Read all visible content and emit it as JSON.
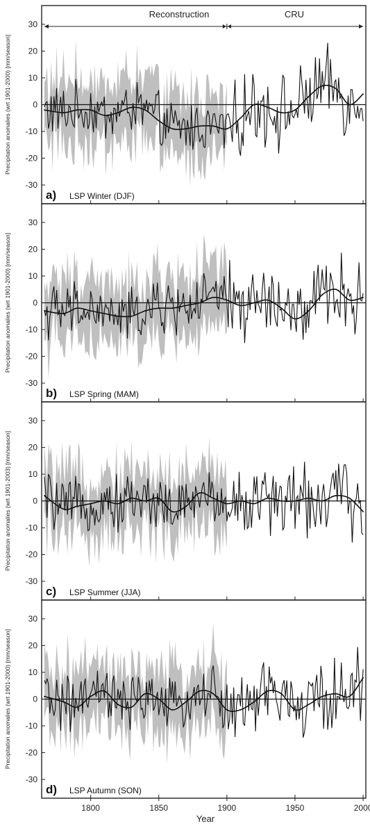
{
  "header": {
    "left_label": "Reconstruction",
    "right_label": "CRU"
  },
  "x_axis": {
    "label": "Year",
    "ticks": [
      "1800",
      "1850",
      "1900",
      "1950",
      "2000"
    ]
  },
  "y_ticks": [
    "30",
    "20",
    "10",
    "0",
    "-10",
    "-20",
    "-30"
  ],
  "colors": {
    "band": "#b4b4b4",
    "line": "#111111",
    "frame": "#222222"
  },
  "chart_data": [
    {
      "type": "line",
      "panel_tag": "a)",
      "panel_title": "LSP Winter (DJF)",
      "ylabel": "Precipitation anomalies (wrt 1901-2000) [mm/season]",
      "xlim": [
        1764,
        2002
      ],
      "ylim": [
        -37,
        37
      ],
      "reconstruction_end": 1900,
      "series": [
        {
          "name": "",
          "x": [
            1766,
            1780,
            1790,
            1800,
            1810,
            1820,
            1830,
            1840,
            1850,
            1860,
            1870,
            1880,
            1890,
            1900,
            1910,
            1920,
            1930,
            1940,
            1950,
            1960,
            1970,
            1980,
            1990,
            2000
          ],
          "values": [
            -2,
            -3,
            -2,
            -2,
            -4,
            -3,
            -1,
            -2,
            -6,
            -9,
            -9,
            -8,
            -8,
            -9,
            -5,
            0,
            -1,
            -3,
            -2,
            3,
            7,
            6,
            0,
            4
          ]
        }
      ]
    },
    {
      "type": "line",
      "panel_tag": "b)",
      "panel_title": "LSP Spring (MAM)",
      "ylabel": "Precipitation anomalies (wrt 1901-2000) [mm/season]",
      "xlim": [
        1764,
        2002
      ],
      "ylim": [
        -37,
        37
      ],
      "reconstruction_end": 1900,
      "series": [
        {
          "name": "",
          "x": [
            1766,
            1780,
            1790,
            1800,
            1810,
            1820,
            1830,
            1840,
            1850,
            1860,
            1870,
            1880,
            1890,
            1900,
            1910,
            1920,
            1930,
            1940,
            1950,
            1960,
            1970,
            1980,
            1990,
            2000
          ],
          "values": [
            -3,
            -4,
            -2,
            -3,
            -4,
            -5,
            -5,
            -3,
            -2,
            -2,
            -1,
            0,
            2,
            1,
            -1,
            0,
            1,
            -2,
            -6,
            -3,
            3,
            5,
            1,
            2
          ]
        }
      ]
    },
    {
      "type": "line",
      "panel_tag": "c)",
      "panel_title": "LSP Summer (JJA)",
      "ylabel": "Precipitation anomalies (wrt 1901-2003) [mm/season]",
      "xlim": [
        1764,
        2002
      ],
      "ylim": [
        -37,
        37
      ],
      "reconstruction_end": 1900,
      "series": [
        {
          "name": "",
          "x": [
            1766,
            1780,
            1790,
            1800,
            1810,
            1820,
            1830,
            1840,
            1850,
            1860,
            1870,
            1880,
            1890,
            1900,
            1910,
            1920,
            1930,
            1940,
            1950,
            1960,
            1970,
            1980,
            1990,
            2000
          ],
          "values": [
            2,
            -3,
            -2,
            -1,
            0,
            -1,
            1,
            0,
            1,
            -4,
            -2,
            3,
            1,
            -1,
            0,
            -1,
            1,
            0,
            0,
            1,
            0,
            2,
            1,
            -4
          ]
        }
      ]
    },
    {
      "type": "line",
      "panel_tag": "d)",
      "panel_title": "LSP Autumn (SON)",
      "ylabel": "Precipitation anomalies (wrt 1901-2000) [mm/season]",
      "xlim": [
        1764,
        2002
      ],
      "ylim": [
        -37,
        37
      ],
      "reconstruction_end": 1900,
      "series": [
        {
          "name": "",
          "x": [
            1766,
            1780,
            1790,
            1800,
            1810,
            1820,
            1830,
            1840,
            1850,
            1860,
            1870,
            1880,
            1890,
            1900,
            1910,
            1920,
            1930,
            1940,
            1950,
            1960,
            1970,
            1980,
            1990,
            2000
          ],
          "values": [
            1,
            -1,
            -3,
            1,
            3,
            -2,
            -3,
            2,
            0,
            -4,
            -1,
            3,
            2,
            -4,
            -4,
            -1,
            3,
            2,
            -4,
            -2,
            1,
            2,
            1,
            8
          ]
        }
      ]
    }
  ]
}
